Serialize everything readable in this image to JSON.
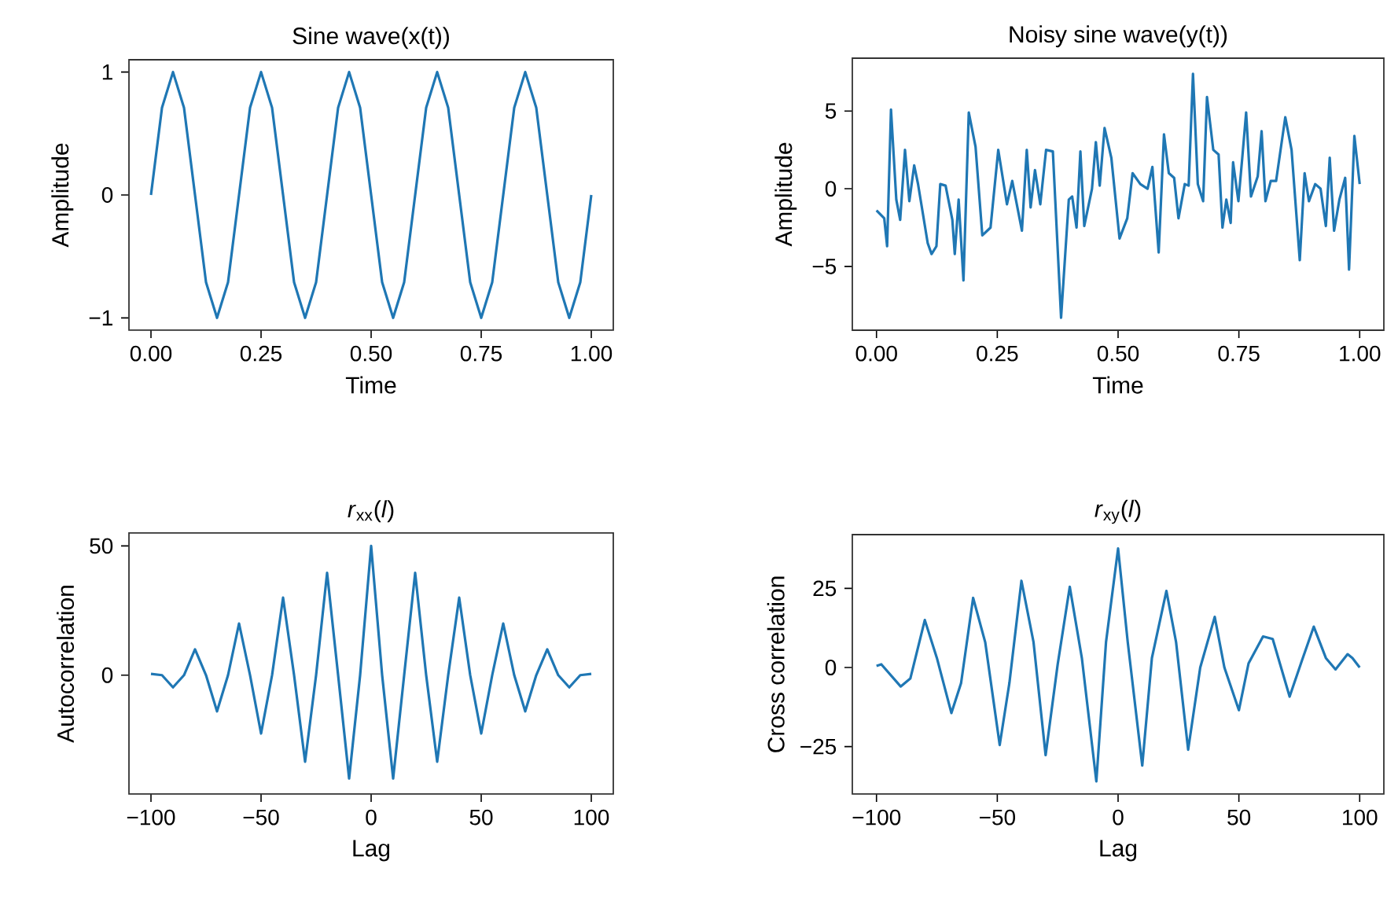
{
  "chart_data": [
    {
      "type": "line",
      "title": "Sine wave(x(t))",
      "xlabel": "Time",
      "ylabel": "Amplitude",
      "marker": "none",
      "xlim": [
        -0.05,
        1.05
      ],
      "ylim": [
        -1.1,
        1.1
      ],
      "xticks": [
        {
          "value": 0,
          "label": "0.00"
        },
        {
          "value": 0.25,
          "label": "0.25"
        },
        {
          "value": 0.5,
          "label": "0.50"
        },
        {
          "value": 0.75,
          "label": "0.75"
        },
        {
          "value": 1,
          "label": "1.00"
        }
      ],
      "yticks": [
        {
          "value": -1,
          "label": "−1"
        },
        0,
        1
      ],
      "series": [
        {
          "color": "#1f77b4",
          "x": [
            0,
            0.025,
            0.05,
            0.075,
            0.1,
            0.125,
            0.15,
            0.175,
            0.2,
            0.225,
            0.25,
            0.275,
            0.3,
            0.325,
            0.35,
            0.375,
            0.4,
            0.425,
            0.45,
            0.475,
            0.5,
            0.525,
            0.55,
            0.575,
            0.6,
            0.625,
            0.65,
            0.675,
            0.7,
            0.725,
            0.75,
            0.775,
            0.8,
            0.825,
            0.85,
            0.875,
            0.9,
            0.925,
            0.95,
            0.975,
            1
          ],
          "values": [
            0,
            0.71,
            1,
            0.71,
            0,
            -0.71,
            -1,
            -0.71,
            0,
            0.71,
            1,
            0.71,
            0,
            -0.71,
            -1,
            -0.71,
            0,
            0.71,
            1,
            0.71,
            0,
            -0.71,
            -1,
            -0.71,
            0,
            0.71,
            1,
            0.71,
            0,
            -0.71,
            -1,
            -0.71,
            0,
            0.71,
            1,
            0.71,
            0,
            -0.71,
            -1,
            -0.71,
            0
          ]
        }
      ]
    },
    {
      "type": "line",
      "title": "Noisy sine wave(y(t))",
      "xlabel": "Time",
      "ylabel": "Amplitude",
      "marker": "none",
      "xlim": [
        -0.05,
        1.05
      ],
      "ylim": [
        -9.1,
        8.4
      ],
      "xticks": [
        {
          "value": 0,
          "label": "0.00"
        },
        {
          "value": 0.25,
          "label": "0.25"
        },
        {
          "value": 0.5,
          "label": "0.50"
        },
        {
          "value": 0.75,
          "label": "0.75"
        },
        {
          "value": 1,
          "label": "1.00"
        }
      ],
      "yticks": [
        {
          "value": -5,
          "label": "−5"
        },
        0,
        5
      ],
      "series": [
        {
          "color": "#1f77b4",
          "x": [
            0,
            0.016,
            0.022,
            0.03,
            0.041,
            0.049,
            0.059,
            0.068,
            0.078,
            0.086,
            0.106,
            0.114,
            0.124,
            0.132,
            0.143,
            0.157,
            0.162,
            0.17,
            0.18,
            0.191,
            0.205,
            0.219,
            0.236,
            0.252,
            0.27,
            0.281,
            0.301,
            0.311,
            0.319,
            0.328,
            0.339,
            0.351,
            0.365,
            0.382,
            0.398,
            0.405,
            0.414,
            0.422,
            0.43,
            0.446,
            0.454,
            0.462,
            0.472,
            0.486,
            0.503,
            0.519,
            0.53,
            0.546,
            0.561,
            0.571,
            0.584,
            0.595,
            0.605,
            0.616,
            0.625,
            0.638,
            0.646,
            0.655,
            0.665,
            0.676,
            0.684,
            0.697,
            0.708,
            0.716,
            0.724,
            0.733,
            0.738,
            0.749,
            0.757,
            0.765,
            0.775,
            0.789,
            0.797,
            0.805,
            0.816,
            0.827,
            0.846,
            0.859,
            0.876,
            0.886,
            0.895,
            0.908,
            0.919,
            0.93,
            0.938,
            0.947,
            0.958,
            0.97,
            0.978,
            0.989,
            1
          ],
          "values": [
            -1.4,
            -1.9,
            -3.7,
            5.1,
            -0.7,
            -2.0,
            2.5,
            -0.8,
            1.5,
            0.3,
            -3.5,
            -4.2,
            -3.7,
            0.3,
            0.2,
            -2.0,
            -4.2,
            -0.7,
            -5.9,
            4.9,
            2.7,
            -3.0,
            -2.5,
            2.5,
            -1.0,
            0.5,
            -2.7,
            2.5,
            -1.2,
            1.2,
            -1.0,
            2.5,
            2.4,
            -8.3,
            -0.7,
            -0.5,
            -2.5,
            2.4,
            -2.4,
            0.0,
            3.0,
            0.2,
            3.9,
            2.0,
            -3.2,
            -1.9,
            1.0,
            0.3,
            0.0,
            1.4,
            -4.1,
            3.5,
            1.0,
            0.7,
            -1.9,
            0.3,
            0.2,
            7.4,
            0.3,
            -0.8,
            5.9,
            2.5,
            2.2,
            -2.5,
            -0.7,
            -2.2,
            1.7,
            -0.8,
            2.0,
            4.9,
            -0.5,
            0.8,
            3.7,
            -0.8,
            0.5,
            0.5,
            4.6,
            2.5,
            -4.6,
            1.0,
            -0.8,
            0.3,
            0.0,
            -2.4,
            2.0,
            -2.7,
            -0.7,
            0.7,
            -5.2,
            3.4,
            0.3
          ]
        }
      ]
    },
    {
      "type": "line",
      "title": "*r*$_{xx}$(*l*)",
      "xlabel": "Lag",
      "ylabel": "Autocorrelation",
      "marker": "none",
      "xlim": [
        -110,
        110
      ],
      "ylim": [
        -46,
        55
      ],
      "xticks": [
        {
          "value": -100,
          "label": "−100"
        },
        {
          "value": -50,
          "label": "−50"
        },
        0,
        50,
        100
      ],
      "yticks": [
        0,
        50
      ],
      "series": [
        {
          "color": "#1f77b4",
          "x": [
            -100,
            -95,
            -90,
            -85,
            -80,
            -75,
            -70,
            -65,
            -60,
            -55,
            -50,
            -45,
            -40,
            -35,
            -30,
            -25,
            -20,
            -15,
            -10,
            -5,
            0,
            5,
            10,
            15,
            20,
            25,
            30,
            35,
            40,
            45,
            50,
            55,
            60,
            65,
            70,
            75,
            80,
            85,
            90,
            95,
            100
          ],
          "values": [
            0.5,
            0,
            -4.7,
            0,
            10,
            0,
            -14,
            0,
            20,
            0,
            -22.6,
            0,
            30,
            0,
            -33.5,
            0,
            39.6,
            0,
            -40,
            0,
            50,
            0,
            -40,
            0,
            39.6,
            0,
            -33.5,
            0,
            30,
            0,
            -22.6,
            0,
            20,
            0,
            -14,
            0,
            10,
            0,
            -4.7,
            0,
            0.5
          ]
        }
      ]
    },
    {
      "type": "line",
      "title": "*r*$_{xy}$(*l*)",
      "xlabel": "Lag",
      "ylabel": "Cross correlation",
      "marker": "none",
      "xlim": [
        -110,
        110
      ],
      "ylim": [
        -40,
        42
      ],
      "xticks": [
        {
          "value": -100,
          "label": "−100"
        },
        {
          "value": -50,
          "label": "−50"
        },
        0,
        50,
        100
      ],
      "yticks": [
        {
          "value": -25,
          "label": "−25"
        },
        0,
        25
      ],
      "series": [
        {
          "color": "#1f77b4",
          "x": [
            -100,
            -98,
            -90,
            -86,
            -80,
            -75,
            -69,
            -65,
            -60,
            -55,
            -49,
            -45,
            -40,
            -35,
            -30,
            -25,
            -20,
            -15,
            -9,
            -5,
            0,
            4,
            10,
            14,
            20,
            24,
            29,
            34,
            40,
            44,
            50,
            54,
            60,
            64,
            71,
            76,
            81,
            86,
            90,
            95,
            97,
            100
          ],
          "values": [
            0.5,
            1,
            -6,
            -3.5,
            15,
            3,
            -14.4,
            -5,
            22,
            8,
            -24.5,
            -5,
            27.4,
            8,
            -27.7,
            1,
            25.5,
            3,
            -36,
            8,
            37.6,
            8,
            -31,
            3,
            24.2,
            8,
            -26,
            0,
            16,
            0,
            -13.5,
            1.3,
            9.8,
            9,
            -9.2,
            2,
            12.9,
            3,
            -0.6,
            4.2,
            3,
            0
          ]
        }
      ]
    }
  ]
}
